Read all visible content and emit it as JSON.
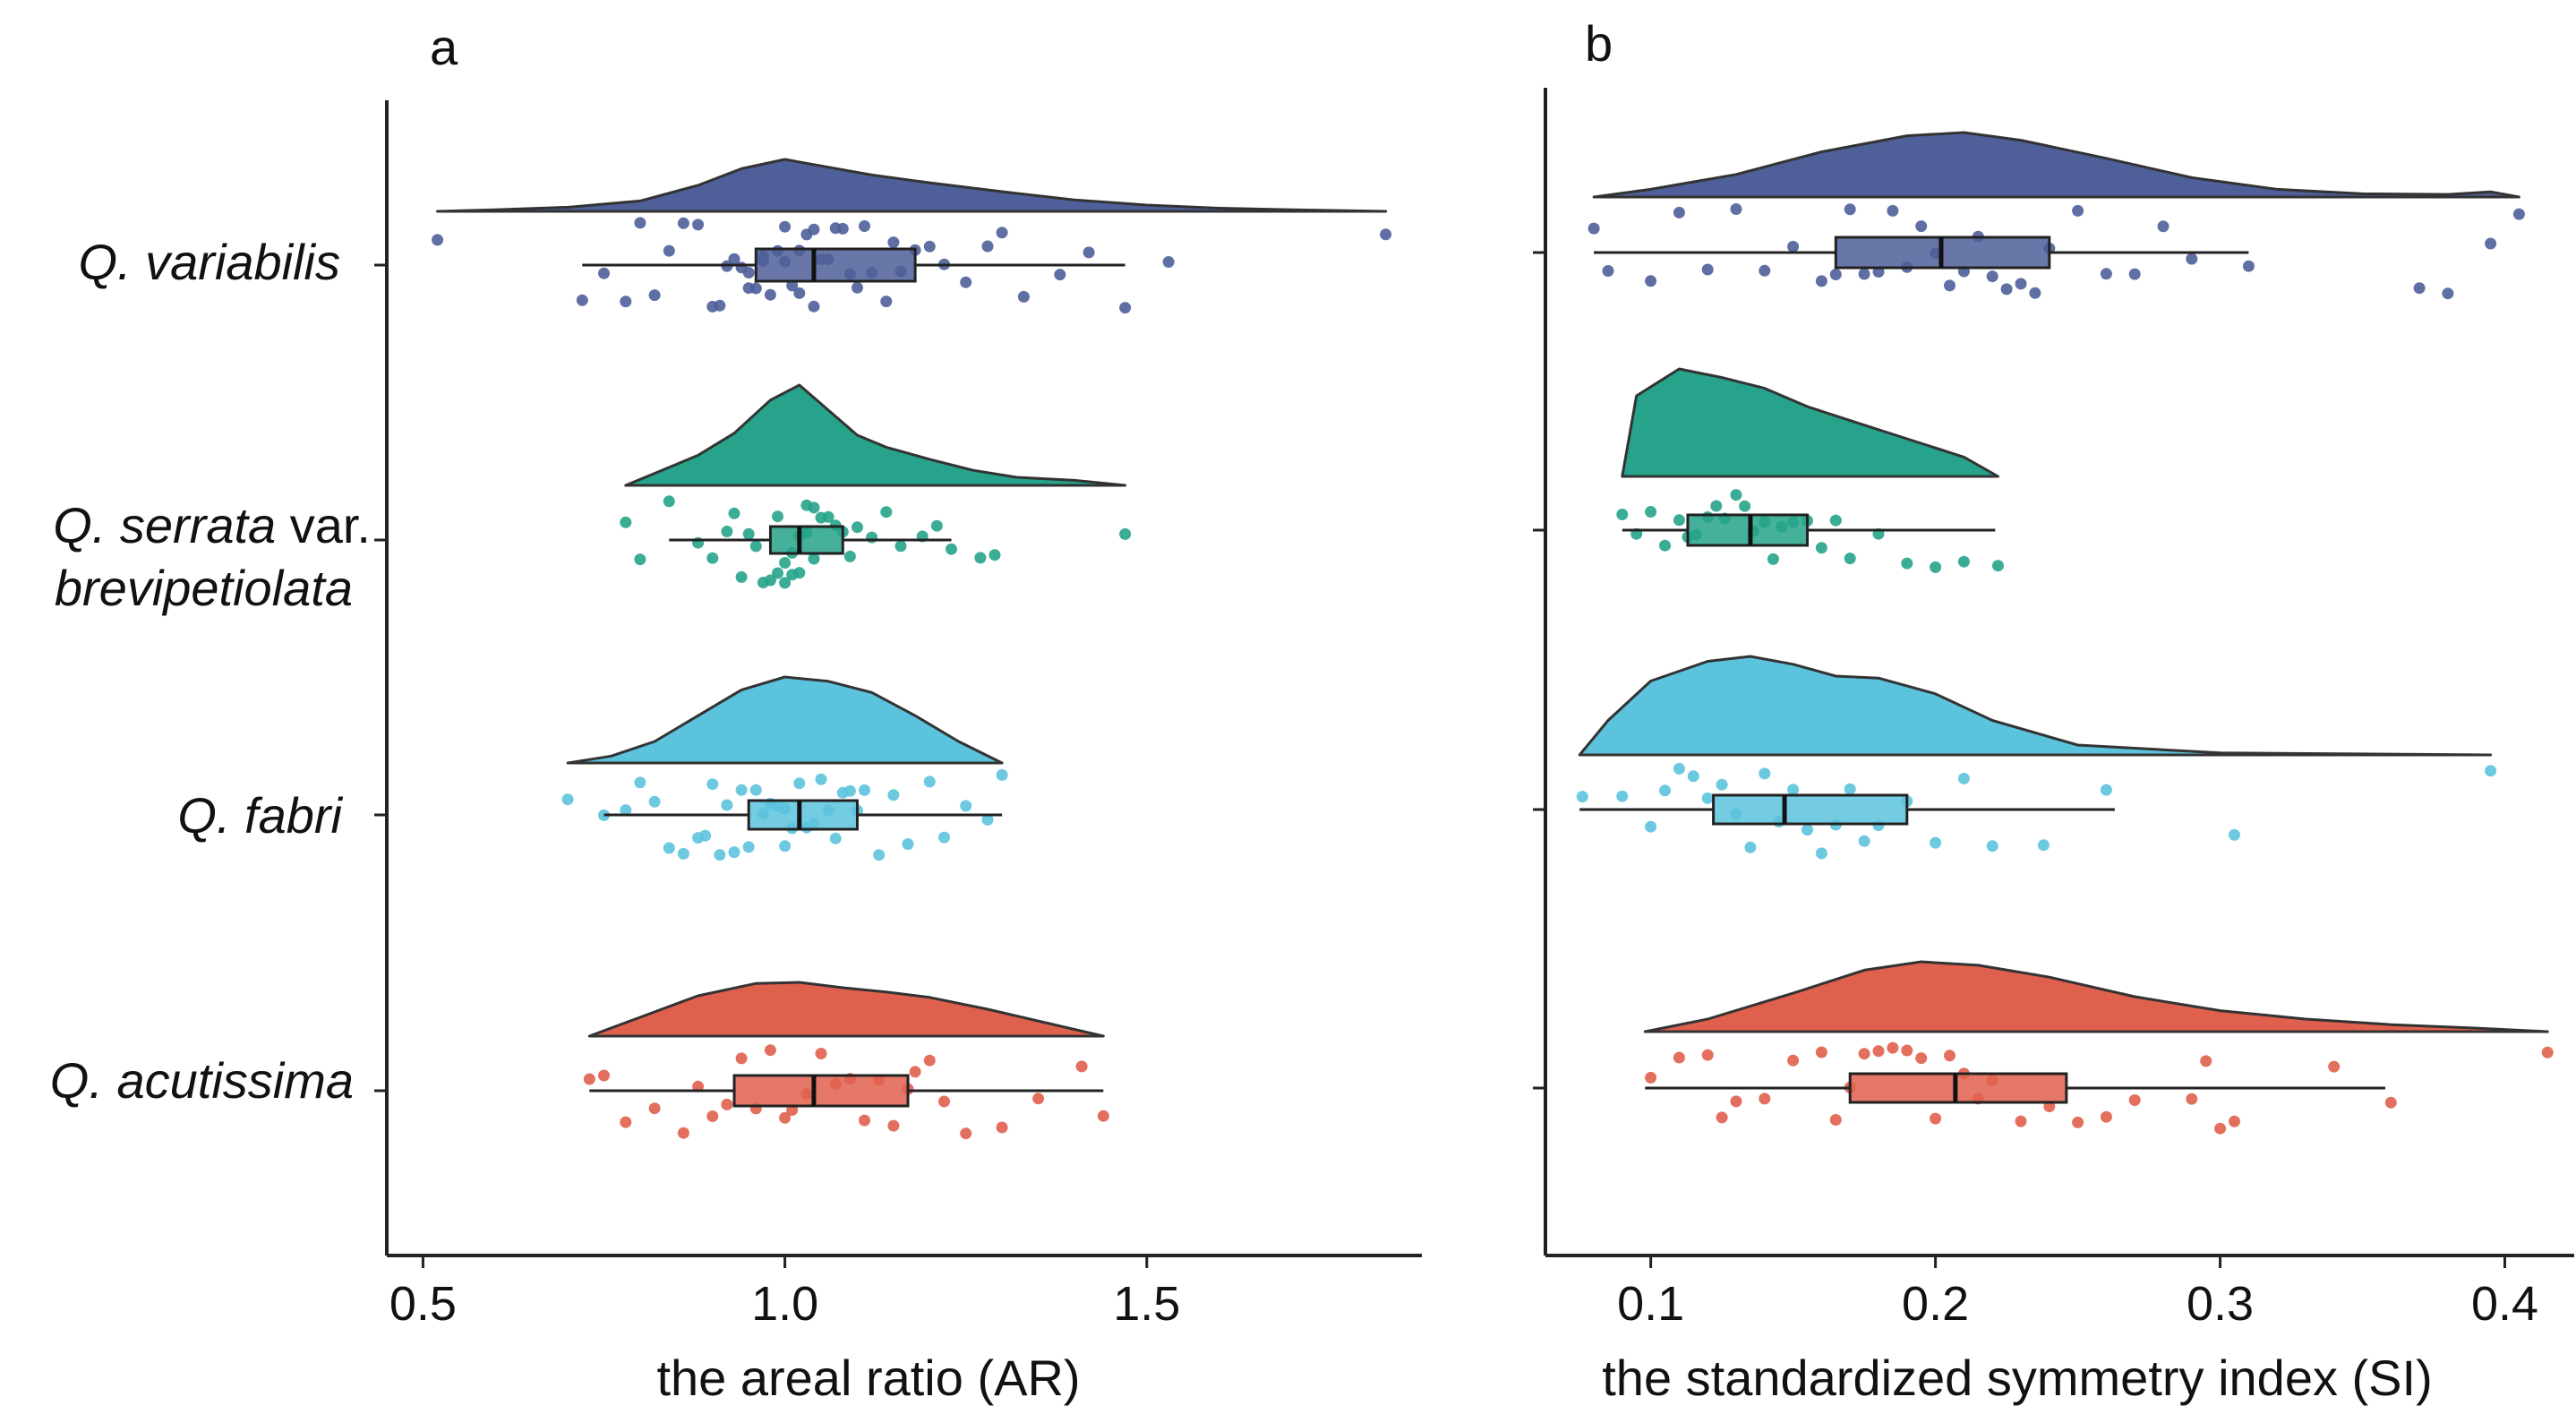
{
  "chart_data": [
    {
      "panel": "a",
      "type": "raincloud",
      "xlabel": "the areal ratio (AR)",
      "xlim": [
        0.45,
        1.88
      ],
      "xticks": [
        0.5,
        1.0,
        1.5
      ],
      "xtick_labels": [
        "0.5",
        "1.0",
        "1.5"
      ],
      "grid": false,
      "legend": "none",
      "categories": [
        {
          "label": "Q. variabilis",
          "color": "#4f5f99",
          "density": [
            [
              0.52,
              0.0
            ],
            [
              0.6,
              0.03
            ],
            [
              0.7,
              0.08
            ],
            [
              0.8,
              0.2
            ],
            [
              0.88,
              0.5
            ],
            [
              0.94,
              0.82
            ],
            [
              1.0,
              1.0
            ],
            [
              1.06,
              0.85
            ],
            [
              1.12,
              0.7
            ],
            [
              1.2,
              0.55
            ],
            [
              1.3,
              0.38
            ],
            [
              1.4,
              0.22
            ],
            [
              1.5,
              0.12
            ],
            [
              1.6,
              0.06
            ],
            [
              1.7,
              0.03
            ],
            [
              1.83,
              0.0
            ]
          ],
          "box": {
            "whisker_low": 0.72,
            "q1": 0.96,
            "median": 1.04,
            "q3": 1.18,
            "whisker_high": 1.47
          },
          "points": [
            0.52,
            0.72,
            0.75,
            0.78,
            0.8,
            0.82,
            0.84,
            0.86,
            0.88,
            0.9,
            0.91,
            0.92,
            0.93,
            0.94,
            0.95,
            0.95,
            0.96,
            0.97,
            0.97,
            0.98,
            0.99,
            1.0,
            1.0,
            1.01,
            1.02,
            1.02,
            1.03,
            1.04,
            1.04,
            1.05,
            1.06,
            1.07,
            1.08,
            1.09,
            1.1,
            1.11,
            1.12,
            1.14,
            1.15,
            1.16,
            1.18,
            1.2,
            1.22,
            1.25,
            1.28,
            1.3,
            1.33,
            1.38,
            1.42,
            1.47,
            1.53,
            1.83
          ]
        },
        {
          "label": "Q. serrata",
          "label_suffix": " var.",
          "label_line2": "brevipetiolata",
          "color": "#26a38a",
          "density": [
            [
              0.78,
              0.0
            ],
            [
              0.82,
              0.12
            ],
            [
              0.88,
              0.3
            ],
            [
              0.93,
              0.52
            ],
            [
              0.98,
              0.85
            ],
            [
              1.02,
              1.0
            ],
            [
              1.06,
              0.75
            ],
            [
              1.1,
              0.5
            ],
            [
              1.14,
              0.38
            ],
            [
              1.2,
              0.26
            ],
            [
              1.26,
              0.15
            ],
            [
              1.32,
              0.08
            ],
            [
              1.4,
              0.05
            ],
            [
              1.47,
              0.0
            ]
          ],
          "box": {
            "whisker_low": 0.84,
            "q1": 0.98,
            "median": 1.02,
            "q3": 1.08,
            "whisker_high": 1.23
          },
          "points": [
            0.78,
            0.8,
            0.84,
            0.88,
            0.9,
            0.92,
            0.93,
            0.94,
            0.95,
            0.96,
            0.97,
            0.98,
            0.99,
            0.99,
            1.0,
            1.0,
            1.01,
            1.01,
            1.02,
            1.02,
            1.03,
            1.03,
            1.04,
            1.04,
            1.05,
            1.06,
            1.07,
            1.08,
            1.09,
            1.1,
            1.12,
            1.14,
            1.16,
            1.19,
            1.21,
            1.23,
            1.27,
            1.29,
            1.47
          ]
        },
        {
          "label": "Q. fabri",
          "color": "#5cc3dd",
          "density": [
            [
              0.7,
              0.0
            ],
            [
              0.76,
              0.08
            ],
            [
              0.82,
              0.25
            ],
            [
              0.88,
              0.55
            ],
            [
              0.94,
              0.85
            ],
            [
              1.0,
              1.0
            ],
            [
              1.06,
              0.95
            ],
            [
              1.12,
              0.82
            ],
            [
              1.18,
              0.55
            ],
            [
              1.24,
              0.25
            ],
            [
              1.3,
              0.0
            ]
          ],
          "box": {
            "whisker_low": 0.75,
            "q1": 0.95,
            "median": 1.02,
            "q3": 1.1,
            "whisker_high": 1.3
          },
          "points": [
            0.7,
            0.75,
            0.78,
            0.8,
            0.82,
            0.84,
            0.86,
            0.88,
            0.89,
            0.9,
            0.91,
            0.92,
            0.93,
            0.94,
            0.95,
            0.96,
            0.97,
            0.98,
            0.99,
            1.0,
            1.0,
            1.01,
            1.02,
            1.03,
            1.04,
            1.05,
            1.06,
            1.07,
            1.08,
            1.09,
            1.1,
            1.11,
            1.13,
            1.15,
            1.17,
            1.2,
            1.22,
            1.25,
            1.28,
            1.3
          ]
        },
        {
          "label": "Q. acutissima",
          "color": "#e0604e",
          "density": [
            [
              0.73,
              0.0
            ],
            [
              0.8,
              0.35
            ],
            [
              0.88,
              0.75
            ],
            [
              0.96,
              0.98
            ],
            [
              1.02,
              1.0
            ],
            [
              1.08,
              0.9
            ],
            [
              1.14,
              0.82
            ],
            [
              1.2,
              0.72
            ],
            [
              1.28,
              0.5
            ],
            [
              1.36,
              0.25
            ],
            [
              1.44,
              0.0
            ]
          ],
          "box": {
            "whisker_low": 0.73,
            "q1": 0.93,
            "median": 1.04,
            "q3": 1.17,
            "whisker_high": 1.44
          },
          "points": [
            0.73,
            0.75,
            0.78,
            0.82,
            0.86,
            0.88,
            0.9,
            0.92,
            0.94,
            0.96,
            0.98,
            1.0,
            1.01,
            1.03,
            1.05,
            1.07,
            1.09,
            1.11,
            1.13,
            1.15,
            1.17,
            1.18,
            1.2,
            1.22,
            1.25,
            1.3,
            1.35,
            1.41,
            1.44
          ]
        }
      ]
    },
    {
      "panel": "b",
      "type": "raincloud",
      "xlabel": "the standardized symmetry index (SI)",
      "xlim": [
        0.063,
        0.425
      ],
      "xticks": [
        0.1,
        0.2,
        0.3,
        0.4
      ],
      "xtick_labels": [
        "0.1",
        "0.2",
        "0.3",
        "0.4"
      ],
      "grid": false,
      "legend": "none",
      "categories": [
        {
          "label": "Q. variabilis",
          "color": "#4f5f99",
          "density": [
            [
              0.08,
              0.0
            ],
            [
              0.1,
              0.12
            ],
            [
              0.13,
              0.35
            ],
            [
              0.16,
              0.7
            ],
            [
              0.19,
              0.95
            ],
            [
              0.21,
              1.0
            ],
            [
              0.23,
              0.88
            ],
            [
              0.26,
              0.6
            ],
            [
              0.29,
              0.3
            ],
            [
              0.32,
              0.12
            ],
            [
              0.35,
              0.05
            ],
            [
              0.38,
              0.04
            ],
            [
              0.395,
              0.08
            ],
            [
              0.405,
              0.0
            ]
          ],
          "box": {
            "whisker_low": 0.08,
            "q1": 0.165,
            "median": 0.202,
            "q3": 0.24,
            "whisker_high": 0.31
          },
          "points": [
            0.08,
            0.085,
            0.1,
            0.11,
            0.12,
            0.13,
            0.14,
            0.15,
            0.16,
            0.165,
            0.17,
            0.175,
            0.18,
            0.185,
            0.19,
            0.195,
            0.2,
            0.205,
            0.21,
            0.215,
            0.22,
            0.225,
            0.23,
            0.235,
            0.24,
            0.25,
            0.26,
            0.27,
            0.28,
            0.29,
            0.31,
            0.37,
            0.38,
            0.395,
            0.405
          ]
        },
        {
          "label": "Q. serrata",
          "color": "#26a38a",
          "density": [
            [
              0.09,
              0.0
            ],
            [
              0.095,
              0.75
            ],
            [
              0.11,
              1.0
            ],
            [
              0.125,
              0.92
            ],
            [
              0.14,
              0.82
            ],
            [
              0.155,
              0.65
            ],
            [
              0.17,
              0.52
            ],
            [
              0.19,
              0.35
            ],
            [
              0.21,
              0.18
            ],
            [
              0.222,
              0.0
            ]
          ],
          "box": {
            "whisker_low": 0.09,
            "q1": 0.113,
            "median": 0.135,
            "q3": 0.155,
            "whisker_high": 0.221
          },
          "points": [
            0.09,
            0.095,
            0.1,
            0.105,
            0.11,
            0.113,
            0.116,
            0.12,
            0.123,
            0.126,
            0.13,
            0.133,
            0.136,
            0.14,
            0.143,
            0.146,
            0.15,
            0.155,
            0.16,
            0.165,
            0.17,
            0.18,
            0.19,
            0.2,
            0.21,
            0.222
          ]
        },
        {
          "label": "Q. fabri",
          "color": "#5cc3dd",
          "density": [
            [
              0.075,
              0.0
            ],
            [
              0.085,
              0.35
            ],
            [
              0.1,
              0.75
            ],
            [
              0.12,
              0.95
            ],
            [
              0.135,
              1.0
            ],
            [
              0.15,
              0.92
            ],
            [
              0.165,
              0.8
            ],
            [
              0.18,
              0.78
            ],
            [
              0.2,
              0.62
            ],
            [
              0.22,
              0.35
            ],
            [
              0.25,
              0.1
            ],
            [
              0.3,
              0.02
            ],
            [
              0.395,
              0.0
            ]
          ],
          "box": {
            "whisker_low": 0.075,
            "q1": 0.122,
            "median": 0.147,
            "q3": 0.19,
            "whisker_high": 0.263
          },
          "points": [
            0.076,
            0.09,
            0.1,
            0.105,
            0.11,
            0.115,
            0.12,
            0.125,
            0.13,
            0.135,
            0.14,
            0.145,
            0.15,
            0.155,
            0.16,
            0.165,
            0.17,
            0.175,
            0.18,
            0.19,
            0.2,
            0.21,
            0.22,
            0.238,
            0.26,
            0.305,
            0.395
          ]
        },
        {
          "label": "Q. acutissima",
          "color": "#e0604e",
          "density": [
            [
              0.098,
              0.0
            ],
            [
              0.12,
              0.18
            ],
            [
              0.15,
              0.55
            ],
            [
              0.175,
              0.88
            ],
            [
              0.195,
              1.0
            ],
            [
              0.215,
              0.95
            ],
            [
              0.24,
              0.78
            ],
            [
              0.27,
              0.5
            ],
            [
              0.3,
              0.3
            ],
            [
              0.33,
              0.18
            ],
            [
              0.36,
              0.1
            ],
            [
              0.39,
              0.05
            ],
            [
              0.415,
              0.0
            ]
          ],
          "box": {
            "whisker_low": 0.098,
            "q1": 0.17,
            "median": 0.207,
            "q3": 0.246,
            "whisker_high": 0.358
          },
          "points": [
            0.1,
            0.11,
            0.12,
            0.125,
            0.13,
            0.14,
            0.15,
            0.16,
            0.165,
            0.17,
            0.175,
            0.18,
            0.185,
            0.19,
            0.195,
            0.2,
            0.205,
            0.21,
            0.215,
            0.22,
            0.23,
            0.24,
            0.25,
            0.26,
            0.27,
            0.29,
            0.295,
            0.3,
            0.305,
            0.34,
            0.36,
            0.415
          ]
        }
      ]
    }
  ]
}
